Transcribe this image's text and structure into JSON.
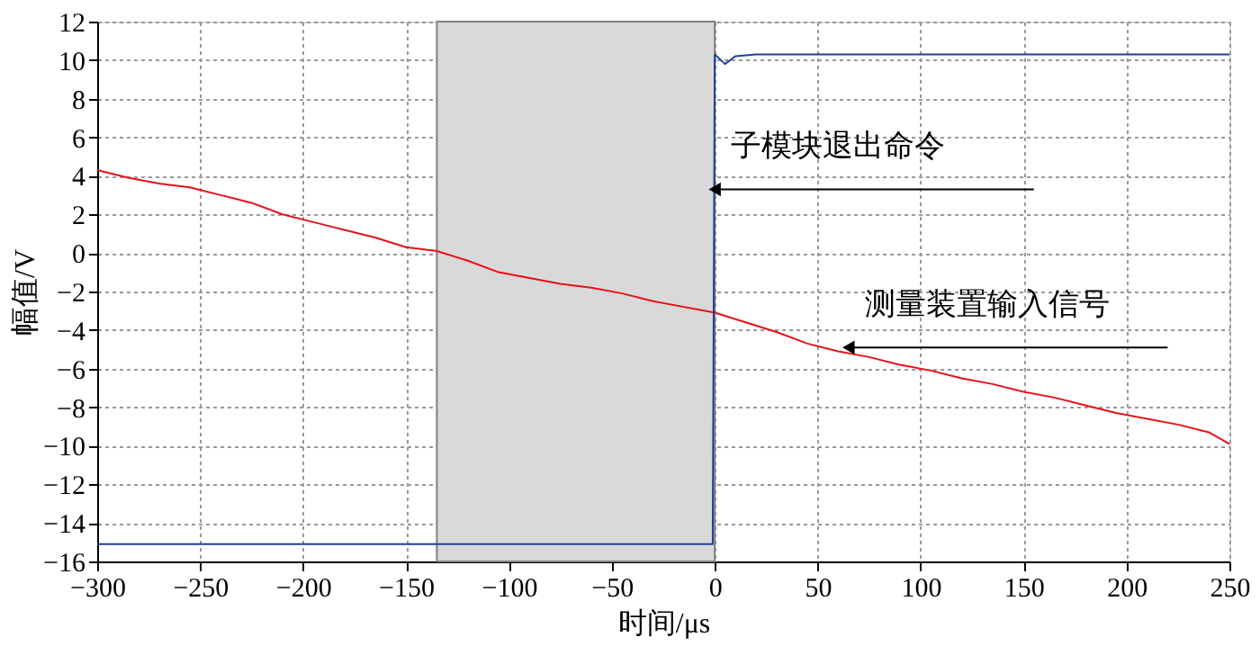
{
  "chart_data": {
    "type": "line",
    "xlabel": "时间/μs",
    "ylabel": "幅值/V",
    "xlim": [
      -300,
      250
    ],
    "xticks": [
      -300,
      -250,
      -200,
      -150,
      -100,
      -50,
      0,
      50,
      100,
      150,
      200,
      250
    ],
    "ylim": [
      -16,
      12
    ],
    "yticks": [
      -16,
      -14,
      -12,
      -10,
      -8,
      -6,
      -4,
      -2,
      0,
      2,
      4,
      6,
      8,
      10,
      12
    ],
    "grid": true,
    "marker": "none",
    "line_style": "solid",
    "bands": [
      {
        "axis": "x",
        "from": -135,
        "to": 0,
        "color": "#d9d9d9"
      }
    ],
    "annotations": [
      {
        "text": "子模块退出命令",
        "x": 0,
        "y": 3.3
      },
      {
        "text": "测量装置输入信号",
        "x": 65,
        "y": -4.9
      }
    ],
    "series": [
      {
        "color": "#e8101a",
        "x": [
          -300,
          -285,
          -270,
          -255,
          -240,
          -225,
          -210,
          -195,
          -180,
          -165,
          -150,
          -135,
          -120,
          -105,
          -90,
          -75,
          -60,
          -45,
          -30,
          -15,
          0,
          15,
          30,
          45,
          60,
          75,
          90,
          105,
          120,
          135,
          150,
          165,
          180,
          195,
          210,
          225,
          240,
          250
        ],
        "values": [
          4.3,
          3.9,
          3.6,
          3.4,
          3.0,
          2.6,
          2.0,
          1.6,
          1.2,
          0.8,
          0.3,
          0.1,
          -0.4,
          -1.0,
          -1.3,
          -1.6,
          -1.8,
          -2.1,
          -2.5,
          -2.8,
          -3.1,
          -3.6,
          -4.1,
          -4.7,
          -5.1,
          -5.4,
          -5.8,
          -6.1,
          -6.5,
          -6.8,
          -7.2,
          -7.5,
          -7.9,
          -8.3,
          -8.6,
          -8.9,
          -9.3,
          -9.9
        ]
      },
      {
        "color": "#1f3fa0",
        "x": [
          -300,
          -1,
          0,
          5,
          10,
          20,
          250
        ],
        "values": [
          -15.1,
          -15.1,
          10.3,
          9.8,
          10.2,
          10.3,
          10.3
        ]
      }
    ]
  }
}
